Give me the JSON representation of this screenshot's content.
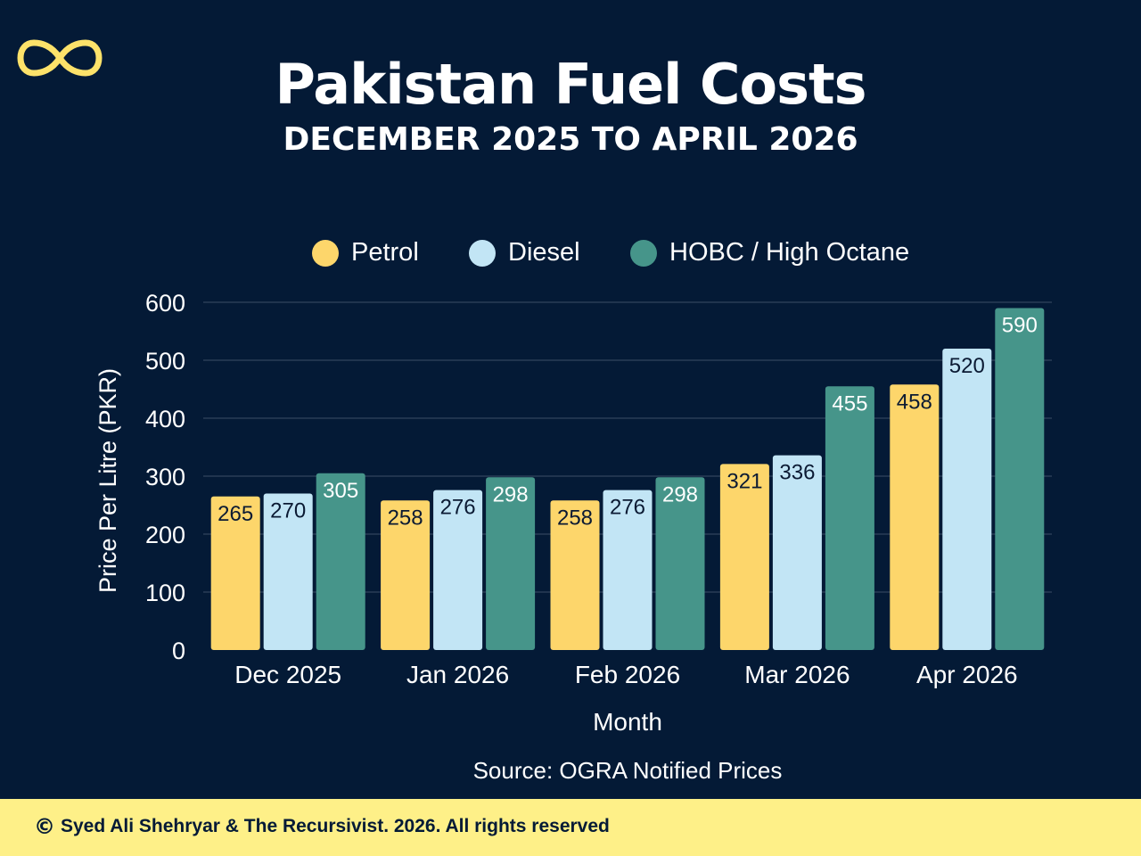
{
  "header": {
    "title": "Pakistan Fuel Costs",
    "subtitle": "DECEMBER 2025 TO APRIL 2026"
  },
  "logo": {
    "icon": "infinity-icon",
    "color": "#fde26a"
  },
  "footer": {
    "icon": "copyright-icon",
    "copyright_symbol": "©",
    "text": "Syed Ali Shehryar & The Recursivist. 2026. All rights reserved"
  },
  "chart_data": {
    "type": "bar",
    "title": "Pakistan Fuel Costs",
    "subtitle": "DECEMBER 2025 TO APRIL 2026",
    "categories": [
      "Dec 2025",
      "Jan 2026",
      "Feb 2026",
      "Mar 2026",
      "Apr 2026"
    ],
    "series": [
      {
        "name": "Petrol",
        "color": "#fdd66b",
        "values": [
          265,
          258,
          258,
          321,
          458
        ]
      },
      {
        "name": "Diesel",
        "color": "#c2e5f5",
        "values": [
          270,
          276,
          276,
          336,
          520
        ]
      },
      {
        "name": "HOBC / High Octane",
        "color": "#46958a",
        "values": [
          305,
          298,
          298,
          455,
          590
        ]
      }
    ],
    "xlabel": "Month",
    "ylabel": "Price Per Litre (PKR)",
    "ylim": [
      0,
      600
    ],
    "yticks": [
      0,
      100,
      200,
      300,
      400,
      500,
      600
    ],
    "grid": true,
    "legend_position": "top-center",
    "source": "Source: OGRA Notified Prices",
    "colors": {
      "background": "#041a36",
      "grid": "#3b4d66",
      "footer_bg": "#fef088"
    }
  }
}
